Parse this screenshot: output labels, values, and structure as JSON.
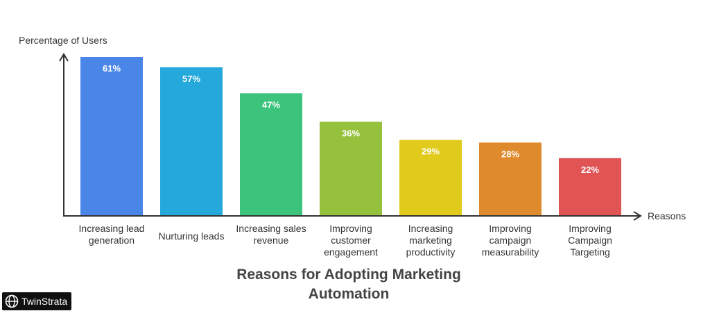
{
  "chart_data": {
    "type": "bar",
    "title_lines": [
      "Reasons for Adopting Marketing",
      "Automation"
    ],
    "xlabel": "Reasons",
    "ylabel": "Percentage of Users",
    "ylim": [
      0,
      61
    ],
    "grid": false,
    "legend": "none",
    "categories": [
      [
        "Increasing lead",
        "generation"
      ],
      [
        "Nurturing leads"
      ],
      [
        "Increasing sales",
        "revenue"
      ],
      [
        "Improving",
        "customer",
        "engagement"
      ],
      [
        "Increasing",
        "marketing",
        "productivity"
      ],
      [
        "Improving",
        "campaign",
        "measurability"
      ],
      [
        "Improving",
        "Campaign",
        "Targeting"
      ]
    ],
    "values": [
      61,
      57,
      47,
      36,
      29,
      28,
      22
    ],
    "value_labels": [
      "61%",
      "57%",
      "47%",
      "36%",
      "29%",
      "28%",
      "22%"
    ],
    "colors": [
      "#4a86e8",
      "#25a9dd",
      "#3cc47c",
      "#95c13d",
      "#e0cb1c",
      "#e08a2e",
      "#e05454"
    ]
  },
  "brand": {
    "name": "TwinStrata"
  }
}
